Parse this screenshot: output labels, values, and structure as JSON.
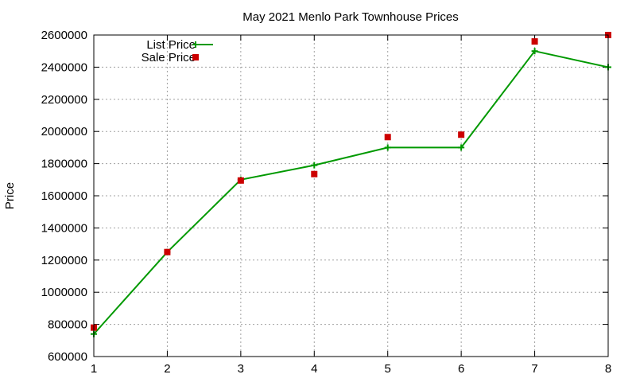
{
  "chart_data": {
    "type": "line",
    "title": "May 2021 Menlo Park Townhouse Prices",
    "xlabel": "",
    "ylabel": "Price",
    "x": [
      1,
      2,
      3,
      4,
      5,
      6,
      7,
      8
    ],
    "xlim": [
      1,
      8
    ],
    "ylim": [
      600000,
      2600000
    ],
    "xticks": [
      1,
      2,
      3,
      4,
      5,
      6,
      7,
      8
    ],
    "yticks": [
      600000,
      800000,
      1000000,
      1200000,
      1400000,
      1600000,
      1800000,
      2000000,
      2200000,
      2400000,
      2600000
    ],
    "grid": true,
    "legend_position": "top-left",
    "series": [
      {
        "name": "List Price",
        "style": "line+markers",
        "marker": "plus",
        "color": "#009900",
        "values": [
          740000,
          1250000,
          1700000,
          1790000,
          1900000,
          1900000,
          2500000,
          2400000
        ]
      },
      {
        "name": "Sale Price",
        "style": "markers",
        "marker": "square",
        "color": "#cc0000",
        "values": [
          780000,
          1250000,
          1695000,
          1735000,
          1965000,
          1980000,
          2560000,
          2600000
        ]
      }
    ]
  }
}
